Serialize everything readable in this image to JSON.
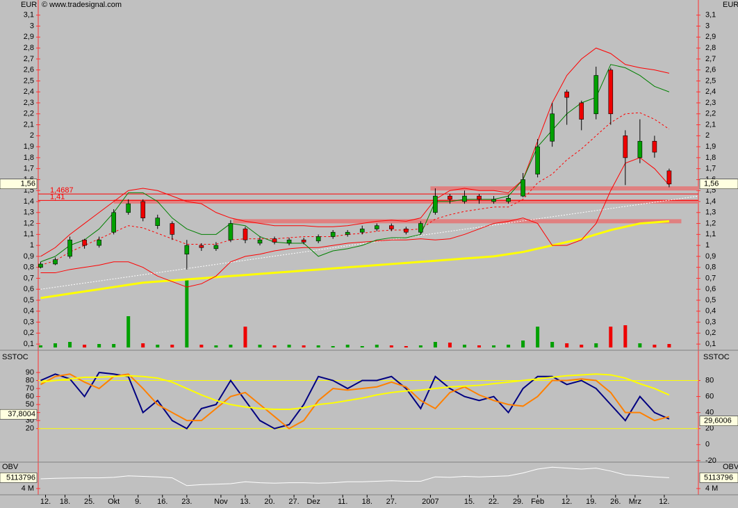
{
  "watermark": "© www.tradesignal.com",
  "chart_data": [
    {
      "type": "candlestick",
      "unit": "EUR",
      "x": [
        0,
        3,
        6,
        9,
        12,
        15,
        18,
        21,
        24,
        27,
        30,
        33,
        36,
        39,
        42,
        45,
        48,
        51,
        54,
        57,
        60,
        63,
        66,
        69,
        72,
        75,
        78,
        81,
        84,
        87,
        90,
        93,
        96,
        99,
        102,
        105,
        108,
        111,
        114,
        117,
        120,
        123,
        126,
        129
      ],
      "open": [
        0.8,
        0.83,
        0.9,
        1.05,
        1.0,
        1.12,
        1.3,
        1.4,
        1.18,
        1.2,
        0.92,
        1.0,
        0.97,
        1.05,
        1.15,
        1.02,
        1.06,
        1.02,
        1.05,
        1.04,
        1.08,
        1.1,
        1.12,
        1.15,
        1.18,
        1.15,
        1.12,
        1.3,
        1.45,
        1.4,
        1.45,
        1.4,
        1.4,
        1.45,
        1.65,
        1.95,
        2.4,
        2.3,
        2.2,
        2.6,
        2.0,
        1.8,
        1.95,
        1.68
      ],
      "high": [
        0.85,
        0.89,
        1.08,
        1.06,
        1.08,
        1.33,
        1.42,
        1.42,
        1.28,
        1.22,
        1.05,
        1.02,
        1.03,
        1.23,
        1.17,
        1.08,
        1.08,
        1.07,
        1.07,
        1.1,
        1.14,
        1.14,
        1.18,
        1.2,
        1.2,
        1.17,
        1.22,
        1.52,
        1.47,
        1.5,
        1.47,
        1.45,
        1.46,
        1.66,
        1.97,
        2.3,
        2.42,
        2.32,
        2.63,
        2.62,
        2.05,
        2.15,
        2.0,
        1.7
      ],
      "low": [
        0.79,
        0.82,
        0.88,
        0.97,
        0.98,
        1.1,
        1.28,
        1.22,
        1.15,
        1.05,
        0.78,
        0.95,
        0.95,
        1.03,
        1.02,
        1.0,
        1.01,
        1.0,
        1.01,
        1.02,
        1.06,
        1.08,
        1.1,
        1.13,
        1.13,
        1.1,
        1.1,
        1.28,
        1.38,
        1.38,
        1.38,
        1.38,
        1.38,
        1.44,
        1.62,
        1.9,
        2.1,
        2.05,
        2.15,
        2.1,
        1.55,
        1.75,
        1.8,
        1.53
      ],
      "close": [
        0.83,
        0.87,
        1.05,
        1.0,
        1.05,
        1.3,
        1.38,
        1.25,
        1.25,
        1.1,
        1.0,
        0.98,
        1.0,
        1.2,
        1.05,
        1.05,
        1.03,
        1.05,
        1.03,
        1.08,
        1.12,
        1.12,
        1.15,
        1.18,
        1.15,
        1.12,
        1.2,
        1.45,
        1.42,
        1.45,
        1.42,
        1.42,
        1.43,
        1.6,
        1.9,
        2.2,
        2.35,
        2.15,
        2.55,
        2.2,
        1.8,
        1.95,
        1.85,
        1.56
      ],
      "up_color": "#00a000",
      "down_color": "#ee0000",
      "volume": {
        "values": [
          3,
          6,
          8,
          4,
          5,
          5,
          45,
          6,
          4,
          4,
          97,
          4,
          3,
          4,
          30,
          4,
          3,
          4,
          3,
          3,
          2,
          4,
          2,
          4,
          3,
          2,
          3,
          8,
          7,
          4,
          3,
          3,
          4,
          10,
          30,
          8,
          6,
          4,
          6,
          30,
          32,
          6,
          4,
          5
        ],
        "lim": [
          0,
          100
        ]
      },
      "series": [
        {
          "color": "#ffff00",
          "width": 3,
          "values": [
            0.52,
            0.54,
            0.56,
            0.58,
            0.6,
            0.62,
            0.64,
            0.66,
            0.67,
            0.68,
            0.69,
            0.7,
            0.71,
            0.72,
            0.73,
            0.74,
            0.75,
            0.76,
            0.77,
            0.78,
            0.79,
            0.8,
            0.81,
            0.82,
            0.83,
            0.84,
            0.85,
            0.86,
            0.87,
            0.88,
            0.89,
            0.9,
            0.92,
            0.94,
            0.97,
            1.0,
            1.03,
            1.06,
            1.1,
            1.14,
            1.17,
            1.2,
            1.21,
            1.22
          ]
        },
        {
          "color": "#ff0000",
          "width": 1,
          "values": [
            0.9,
            0.98,
            1.1,
            1.2,
            1.3,
            1.4,
            1.5,
            1.52,
            1.5,
            1.45,
            1.4,
            1.38,
            1.3,
            1.25,
            1.22,
            1.2,
            1.18,
            1.18,
            1.18,
            1.17,
            1.17,
            1.18,
            1.2,
            1.22,
            1.23,
            1.22,
            1.25,
            1.42,
            1.5,
            1.52,
            1.5,
            1.5,
            1.48,
            1.6,
            1.95,
            2.3,
            2.55,
            2.7,
            2.8,
            2.75,
            2.65,
            2.62,
            2.6,
            2.57
          ]
        },
        {
          "color": "#ff0000",
          "width": 1,
          "values": [
            0.75,
            0.75,
            0.78,
            0.8,
            0.82,
            0.85,
            0.85,
            0.8,
            0.72,
            0.67,
            0.62,
            0.65,
            0.72,
            0.85,
            0.9,
            0.92,
            0.95,
            0.97,
            0.98,
            0.98,
            1.0,
            1.02,
            1.03,
            1.04,
            1.05,
            1.05,
            1.06,
            1.05,
            1.06,
            1.1,
            1.15,
            1.2,
            1.22,
            1.25,
            1.2,
            1.0,
            1.0,
            1.05,
            1.2,
            1.5,
            1.75,
            1.8,
            1.7,
            1.55
          ]
        },
        {
          "color": "#ff0000",
          "width": 1,
          "dash": "3,3",
          "values": [
            0.82,
            0.86,
            0.94,
            1.0,
            1.06,
            1.12,
            1.18,
            1.16,
            1.11,
            1.06,
            1.01,
            1.01,
            1.01,
            1.05,
            1.06,
            1.06,
            1.06,
            1.07,
            1.08,
            1.08,
            1.08,
            1.1,
            1.11,
            1.13,
            1.14,
            1.14,
            1.15,
            1.24,
            1.28,
            1.31,
            1.33,
            1.35,
            1.35,
            1.42,
            1.57,
            1.65,
            1.78,
            1.88,
            2.0,
            2.12,
            2.2,
            2.21,
            2.15,
            2.06
          ]
        },
        {
          "color": "#008000",
          "width": 1,
          "values": [
            0.85,
            0.9,
            1.0,
            1.05,
            1.15,
            1.3,
            1.48,
            1.48,
            1.4,
            1.25,
            1.15,
            1.1,
            1.1,
            1.2,
            1.18,
            1.08,
            1.03,
            1.02,
            1.02,
            0.9,
            0.95,
            0.97,
            1.0,
            1.05,
            1.07,
            1.07,
            1.1,
            1.4,
            1.4,
            1.42,
            1.42,
            1.42,
            1.45,
            1.6,
            1.9,
            2.05,
            2.2,
            2.3,
            2.35,
            2.65,
            2.62,
            2.55,
            2.45,
            2.4
          ]
        }
      ],
      "trendline": {
        "x": [
          0,
          135
        ],
        "values": [
          0.6,
          1.45
        ],
        "color": "#ffffff"
      },
      "levels": [
        {
          "value": 1.4687,
          "label": "1,4687"
        },
        {
          "value": 1.41,
          "label": "1,41"
        }
      ],
      "level_color": "#ff0000",
      "zones": [
        {
          "value": 1.52,
          "x": [
            80,
            135
          ]
        },
        {
          "value": 1.4,
          "x": [
            15,
            135
          ]
        },
        {
          "value": 1.22,
          "x": [
            39.5,
            131.5
          ]
        }
      ],
      "zone_color": "#e08080",
      "xlim": [
        -0.5,
        135
      ],
      "xticks": [
        {
          "value": 1,
          "label": "12."
        },
        {
          "value": 5,
          "label": "18."
        },
        {
          "value": 10,
          "label": "25."
        },
        {
          "value": 15,
          "label": "Okt"
        },
        {
          "value": 20,
          "label": "9."
        },
        {
          "value": 25,
          "label": "16."
        },
        {
          "value": 30,
          "label": "23."
        },
        {
          "value": 37,
          "label": "Nov"
        },
        {
          "value": 42,
          "label": "13."
        },
        {
          "value": 47,
          "label": "20."
        },
        {
          "value": 52,
          "label": "27."
        },
        {
          "value": 56,
          "label": "Dez"
        },
        {
          "value": 62,
          "label": "11."
        },
        {
          "value": 67,
          "label": "18."
        },
        {
          "value": 72,
          "label": "27."
        },
        {
          "value": 80,
          "label": "2007"
        },
        {
          "value": 88,
          "label": "15."
        },
        {
          "value": 93,
          "label": "22."
        },
        {
          "value": 98,
          "label": "29."
        },
        {
          "value": 102,
          "label": "Feb"
        },
        {
          "value": 108,
          "label": "12."
        },
        {
          "value": 113,
          "label": "19."
        },
        {
          "value": 118,
          "label": "26."
        },
        {
          "value": 122,
          "label": "Mrz"
        },
        {
          "value": 128,
          "label": "12."
        }
      ],
      "ylim": [
        0.05,
        3.2
      ],
      "yticks": [
        {
          "value": 0.1,
          "label": "0,1"
        },
        {
          "value": 0.2,
          "label": "0,2"
        },
        {
          "value": 0.3,
          "label": "0,3"
        },
        {
          "value": 0.4,
          "label": "0,4"
        },
        {
          "value": 0.5,
          "label": "0,5"
        },
        {
          "value": 0.6,
          "label": "0,6"
        },
        {
          "value": 0.7,
          "label": "0,7"
        },
        {
          "value": 0.8,
          "label": "0,8"
        },
        {
          "value": 0.9,
          "label": "0,9"
        },
        1,
        {
          "value": 1.1,
          "label": "1,1"
        },
        {
          "value": 1.2,
          "label": "1,2"
        },
        {
          "value": 1.3,
          "label": "1,3"
        },
        {
          "value": 1.4,
          "label": "1,4"
        },
        {
          "value": 1.5,
          "label": "1,5"
        },
        {
          "value": 1.6,
          "label": "1,6"
        },
        {
          "value": 1.7,
          "label": "1,7"
        },
        {
          "value": 1.8,
          "label": "1,8"
        },
        {
          "value": 1.9,
          "label": "1,9"
        },
        2,
        {
          "value": 2.1,
          "label": "2,1"
        },
        {
          "value": 2.2,
          "label": "2,2"
        },
        {
          "value": 2.3,
          "label": "2,3"
        },
        {
          "value": 2.4,
          "label": "2,4"
        },
        {
          "value": 2.5,
          "label": "2,5"
        },
        {
          "value": 2.6,
          "label": "2,6"
        },
        {
          "value": 2.7,
          "label": "2,7"
        },
        {
          "value": 2.8,
          "label": "2,8"
        },
        {
          "value": 2.9,
          "label": "2,9"
        },
        3,
        {
          "value": 3.1,
          "label": "3,1"
        }
      ],
      "last": {
        "value": 1.56,
        "label": "1,56"
      }
    },
    {
      "type": "line",
      "title": "SSTOC",
      "series": [
        {
          "color": "#000080",
          "width": 2,
          "values": [
            80,
            88,
            82,
            60,
            90,
            88,
            85,
            40,
            55,
            30,
            20,
            45,
            50,
            80,
            55,
            30,
            20,
            25,
            50,
            85,
            80,
            70,
            80,
            80,
            85,
            70,
            45,
            85,
            70,
            60,
            55,
            60,
            40,
            70,
            85,
            85,
            75,
            80,
            70,
            50,
            30,
            60,
            40,
            32
          ]
        },
        {
          "color": "#ff8000",
          "width": 2,
          "values": [
            75,
            85,
            88,
            78,
            70,
            85,
            88,
            70,
            50,
            40,
            30,
            30,
            45,
            60,
            65,
            50,
            35,
            20,
            30,
            55,
            70,
            68,
            70,
            72,
            78,
            72,
            55,
            45,
            65,
            72,
            62,
            55,
            50,
            48,
            60,
            80,
            80,
            82,
            80,
            65,
            40,
            40,
            30,
            35
          ]
        },
        {
          "color": "#ffff00",
          "width": 2,
          "values": [
            78,
            80,
            82,
            84,
            84,
            85,
            86,
            85,
            83,
            78,
            70,
            62,
            55,
            50,
            47,
            45,
            44,
            44,
            46,
            50,
            52,
            55,
            58,
            62,
            65,
            67,
            68,
            70,
            72,
            73,
            74,
            76,
            78,
            80,
            82,
            84,
            86,
            87,
            88,
            87,
            83,
            76,
            70,
            62
          ]
        }
      ],
      "levels": [
        80,
        20
      ],
      "level_color": "#ffff00",
      "ylim": [
        -21,
        116
      ],
      "yticks": [
        90,
        80,
        70,
        60,
        50,
        40,
        30,
        20
      ],
      "y2ticks": [
        80,
        60,
        40,
        20,
        0,
        -20
      ],
      "last": {
        "value": 37.8004,
        "label": "37,8004"
      },
      "last2": {
        "value": 29.6006,
        "label": "29,6006"
      }
    },
    {
      "type": "line",
      "title": "OBV",
      "series": [
        {
          "color": "#ffffff",
          "width": 1,
          "values": [
            5000000,
            5050000,
            5080000,
            5100000,
            5100000,
            5150000,
            5300000,
            5250000,
            5200000,
            5100000,
            4300000,
            4400000,
            4450000,
            4500000,
            4700000,
            4600000,
            4550000,
            4600000,
            4600000,
            4550000,
            4600000,
            4700000,
            4700000,
            4750000,
            4800000,
            4750000,
            4750000,
            5200000,
            5150000,
            5250000,
            5200000,
            5250000,
            5300000,
            5600000,
            6000000,
            6200000,
            6100000,
            6000000,
            6100000,
            5800000,
            5400000,
            5300000,
            5200000,
            5113796
          ]
        }
      ],
      "ylim": [
        3500000,
        6500000
      ],
      "yticks": [
        {
          "value": 4000000,
          "label": "4 M"
        }
      ],
      "last": {
        "value": 5113796,
        "label": "5113796"
      }
    }
  ]
}
